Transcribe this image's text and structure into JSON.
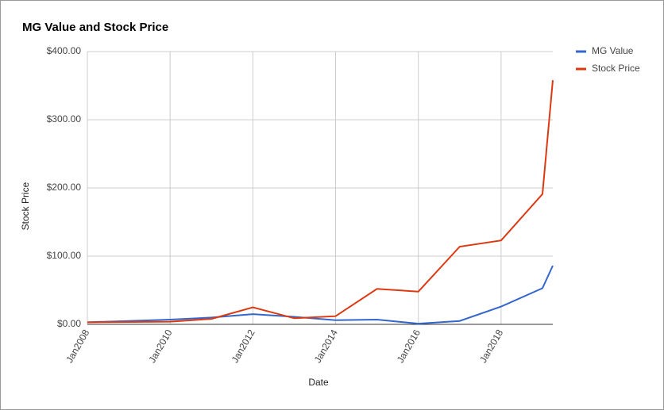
{
  "chart_data": {
    "type": "line",
    "title": "MG Value and Stock Price",
    "x_label": "Date",
    "y_label": "Stock Price",
    "x": [
      "2008-01",
      "2009-01",
      "2010-01",
      "2011-01",
      "2012-01",
      "2013-01",
      "2014-01",
      "2015-01",
      "2016-01",
      "2017-01",
      "2018-01",
      "2019-01",
      "2019-04"
    ],
    "series": [
      {
        "name": "MG Value",
        "color": "#3366cc",
        "values": [
          3,
          5,
          7,
          10,
          15,
          11,
          6,
          7,
          1,
          5,
          26,
          53,
          86
        ]
      },
      {
        "name": "Stock Price",
        "color": "#dc3912",
        "values": [
          3,
          3.5,
          4,
          8,
          25,
          9,
          12,
          52,
          48,
          114,
          123,
          191,
          358
        ]
      }
    ],
    "xlim": [
      "2008-01",
      "2019-04"
    ],
    "xticks": [
      {
        "value": "2008-01",
        "label": "Jan2008"
      },
      {
        "value": "2010-01",
        "label": "Jan2010"
      },
      {
        "value": "2012-01",
        "label": "Jan2012"
      },
      {
        "value": "2014-01",
        "label": "Jan2014"
      },
      {
        "value": "2016-01",
        "label": "Jan2016"
      },
      {
        "value": "2018-01",
        "label": "Jan2018"
      }
    ],
    "ylim": [
      0,
      400
    ],
    "yticks": [
      {
        "value": 0,
        "label": "$0.00"
      },
      {
        "value": 100,
        "label": "$100.00"
      },
      {
        "value": 200,
        "label": "$200.00"
      },
      {
        "value": 300,
        "label": "$300.00"
      },
      {
        "value": 400,
        "label": "$400.00"
      }
    ],
    "grid": true,
    "legend": "right"
  }
}
